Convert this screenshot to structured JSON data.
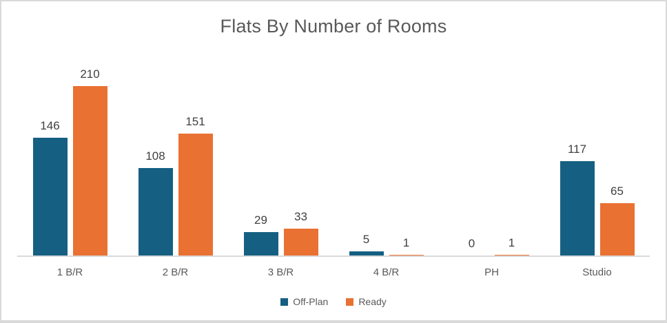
{
  "chart_data": {
    "type": "bar",
    "title": "Flats By Number of Rooms",
    "categories": [
      "1 B/R",
      "2 B/R",
      "3 B/R",
      "4 B/R",
      "PH",
      "Studio"
    ],
    "series": [
      {
        "name": "Off-Plan",
        "color": "#156082",
        "values": [
          146,
          108,
          29,
          5,
          0,
          117
        ]
      },
      {
        "name": "Ready",
        "color": "#E97132",
        "values": [
          210,
          151,
          33,
          1,
          1,
          65
        ]
      }
    ],
    "xlabel": "",
    "ylabel": "",
    "ylim": [
      0,
      250
    ],
    "grid": false,
    "data_labels": true,
    "legend_position": "bottom"
  },
  "colors": {
    "title_text": "#595959",
    "data_label_text": "#404040",
    "category_text": "#595959",
    "legend_text": "#595959",
    "axis_line": "#D9D9D9",
    "frame_border": "#D9D9D9",
    "background": "#FFFFFF"
  }
}
